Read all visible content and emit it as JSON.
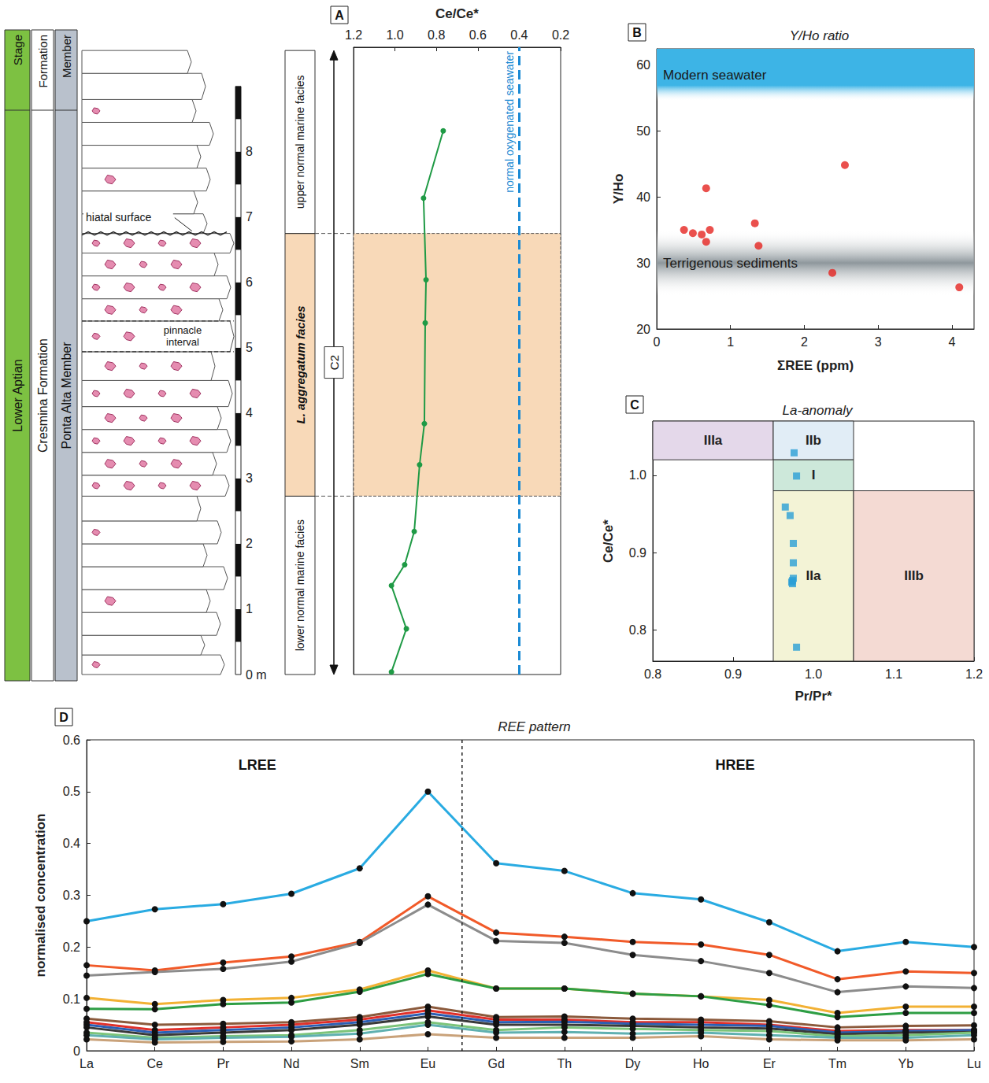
{
  "chart_data": [
    {
      "type": "line",
      "panel": "A",
      "x_label": "Ce/Ce*",
      "x": [
        1.017,
        0.945,
        1.017,
        0.953,
        0.907,
        0.881,
        0.858,
        0.854,
        0.85,
        0.862,
        0.767
      ],
      "values": [
        0.04,
        0.7,
        1.36,
        1.68,
        2.19,
        3.21,
        3.84,
        5.38,
        6.04,
        7.29,
        8.32
      ],
      "xlim": [
        1.2,
        0.2
      ],
      "xticks": [
        1.2,
        {
          "value": 1,
          "label": "1.0"
        },
        0.8,
        0.6,
        0.4,
        0.2
      ],
      "ylim": [
        0,
        9.6
      ],
      "yticks": [
        {
          "value": 0,
          "label": "0 m"
        },
        1,
        2,
        3,
        4,
        5,
        6,
        7,
        8
      ],
      "color": "#1f9a45",
      "marker": "circle",
      "grid": false,
      "reference_line": {
        "value": 0.4,
        "label": "normal oxygenated seawater",
        "color": "#1a8ad4"
      }
    },
    {
      "type": "scatter",
      "panel": "B",
      "title": "Y/Ho ratio",
      "x_label": "ΣREE (ppm)",
      "y_label": "Y/Ho",
      "x": [
        0.37,
        0.49,
        0.61,
        0.67,
        0.67,
        0.72,
        1.33,
        1.38,
        2.38,
        2.55,
        4.1
      ],
      "values": [
        35.0,
        34.5,
        34.3,
        41.3,
        33.2,
        35.0,
        36.0,
        32.6,
        28.5,
        44.8,
        26.3
      ],
      "xlim": [
        0,
        4.3
      ],
      "xticks": [
        0,
        1,
        2,
        3,
        4
      ],
      "ylim": [
        20,
        62.4
      ],
      "yticks": [
        20,
        30,
        40,
        50,
        60
      ],
      "color": "#e52421",
      "marker": "circle",
      "grid": false,
      "bands": [
        {
          "label": "Modern seawater",
          "y_range": [
            54.5,
            62.4
          ],
          "color": "#3db4e6"
        },
        {
          "label": "Terrigenous sediments",
          "y_range": [
            25,
            35
          ],
          "color": "#8e979c"
        }
      ]
    },
    {
      "type": "scatter",
      "panel": "C",
      "title": "La-anomaly",
      "x_label": "Pr/Pr*",
      "y_label": "Ce/Ce*",
      "x": [
        0.976,
        0.979,
        0.965,
        0.971,
        0.975,
        0.975,
        0.975,
        0.974,
        0.973,
        0.974,
        0.979
      ],
      "values": [
        1.029,
        0.999,
        0.959,
        0.948,
        0.912,
        0.887,
        0.867,
        0.864,
        0.862,
        0.86,
        0.778
      ],
      "xlim": [
        0.8,
        1.2
      ],
      "xticks": [
        0.8,
        0.9,
        {
          "value": 1,
          "label": "1.0"
        },
        1.1,
        1.2
      ],
      "ylim": [
        0.76,
        1.07
      ],
      "yticks": [
        0.8,
        0.9,
        {
          "value": 1,
          "label": "1.0"
        }
      ],
      "color": "#2a9fd6",
      "marker": "square",
      "grid": false,
      "regions": [
        {
          "label": "IIIa",
          "x_range": [
            0.8,
            0.95
          ],
          "y_range": [
            1.02,
            1.07
          ],
          "color": "#e4d8ea"
        },
        {
          "label": "IIb",
          "x_range": [
            0.95,
            1.05
          ],
          "y_range": [
            1.02,
            1.07
          ],
          "color": "#e1edf6"
        },
        {
          "label": "I",
          "x_range": [
            0.95,
            1.05
          ],
          "y_range": [
            0.98,
            1.02
          ],
          "color": "#cde8da"
        },
        {
          "label": "IIa",
          "x_range": [
            0.95,
            1.05
          ],
          "y_range": [
            0.76,
            0.98
          ],
          "color": "#f3f3d6"
        },
        {
          "label": "IIIb",
          "x_range": [
            1.05,
            1.2
          ],
          "y_range": [
            0.76,
            0.98
          ],
          "color": "#f4dad3"
        }
      ]
    },
    {
      "type": "line",
      "panel": "D",
      "title": "REE pattern",
      "y_label": "normalised concentration",
      "categories": [
        "La",
        "Ce",
        "Pr",
        "Nd",
        "Sm",
        "Eu",
        "Gd",
        "Th",
        "Dy",
        "Ho",
        "Er",
        "Tm",
        "Yb",
        "Lu"
      ],
      "ylim": [
        0,
        0.6
      ],
      "yticks": [
        0,
        0.1,
        0.2,
        0.3,
        0.4,
        0.5,
        0.6
      ],
      "marker": "circle",
      "grid": false,
      "group_labels": [
        {
          "label": "LREE",
          "from": "La",
          "to": "Eu"
        },
        {
          "label": "HREE",
          "from": "Gd",
          "to": "Lu"
        }
      ],
      "divider_between": [
        "Eu",
        "Gd"
      ],
      "series": [
        {
          "color": "#29abe2",
          "values": [
            0.25,
            0.273,
            0.283,
            0.303,
            0.352,
            0.5,
            0.362,
            0.347,
            0.304,
            0.292,
            0.248,
            0.192,
            0.21,
            0.2
          ]
        },
        {
          "color": "#f15a29",
          "values": [
            0.165,
            0.155,
            0.17,
            0.182,
            0.21,
            0.298,
            0.228,
            0.22,
            0.21,
            0.205,
            0.185,
            0.138,
            0.153,
            0.15
          ]
        },
        {
          "color": "#8c8c8c",
          "values": [
            0.145,
            0.152,
            0.158,
            0.172,
            0.208,
            0.282,
            0.212,
            0.208,
            0.185,
            0.173,
            0.15,
            0.113,
            0.124,
            0.121
          ]
        },
        {
          "color": "#f2b134",
          "values": [
            0.102,
            0.09,
            0.098,
            0.102,
            0.118,
            0.155,
            0.12,
            0.12,
            0.11,
            0.105,
            0.098,
            0.073,
            0.085,
            0.085
          ]
        },
        {
          "color": "#2e9e44",
          "values": [
            0.081,
            0.08,
            0.09,
            0.093,
            0.114,
            0.148,
            0.12,
            0.12,
            0.11,
            0.105,
            0.088,
            0.065,
            0.073,
            0.073
          ]
        },
        {
          "color": "#8b5a3c",
          "values": [
            0.062,
            0.05,
            0.052,
            0.055,
            0.065,
            0.085,
            0.065,
            0.066,
            0.062,
            0.06,
            0.057,
            0.045,
            0.048,
            0.049
          ]
        },
        {
          "color": "#e0302a",
          "values": [
            0.055,
            0.04,
            0.045,
            0.05,
            0.06,
            0.078,
            0.06,
            0.06,
            0.055,
            0.055,
            0.05,
            0.038,
            0.04,
            0.04
          ]
        },
        {
          "color": "#2b5fb4",
          "values": [
            0.05,
            0.035,
            0.04,
            0.045,
            0.055,
            0.072,
            0.055,
            0.056,
            0.052,
            0.05,
            0.048,
            0.035,
            0.038,
            0.04
          ]
        },
        {
          "color": "#3a3a3a",
          "values": [
            0.045,
            0.03,
            0.035,
            0.04,
            0.05,
            0.066,
            0.05,
            0.05,
            0.048,
            0.045,
            0.043,
            0.032,
            0.035,
            0.036
          ]
        },
        {
          "color": "#7cc47a",
          "values": [
            0.035,
            0.025,
            0.028,
            0.03,
            0.04,
            0.055,
            0.04,
            0.045,
            0.042,
            0.04,
            0.038,
            0.028,
            0.03,
            0.035
          ]
        },
        {
          "color": "#5fb0b0",
          "values": [
            0.03,
            0.022,
            0.025,
            0.027,
            0.033,
            0.05,
            0.035,
            0.036,
            0.033,
            0.035,
            0.03,
            0.025,
            0.025,
            0.03
          ]
        },
        {
          "color": "#c9a27a",
          "values": [
            0.022,
            0.016,
            0.017,
            0.018,
            0.022,
            0.032,
            0.025,
            0.025,
            0.025,
            0.028,
            0.022,
            0.02,
            0.02,
            0.022
          ]
        }
      ]
    }
  ],
  "stratigraphic_column": {
    "columns": [
      {
        "header": "Stage",
        "name": "Lower Aptian",
        "color": "#7dc142"
      },
      {
        "header": "Formation",
        "name": "Cresmina Formation",
        "color": "#ffffff"
      },
      {
        "header": "Member",
        "name": "Ponta Alta Member",
        "color": "#b9c1cc"
      }
    ],
    "hiatal_surface": {
      "label": "hiatal surface",
      "depth": 6.75
    },
    "pinnacle_interval": {
      "label": "pinnacle interval",
      "depth_range": [
        4.94,
        5.41
      ]
    },
    "facies": [
      {
        "label": "lower normal marine facies",
        "depth_range": [
          0,
          2.73
        ]
      },
      {
        "label": "L. aggregatum facies",
        "depth_range": [
          2.73,
          6.75
        ],
        "color": "#f8d9b8"
      },
      {
        "label": "upper normal marine facies",
        "depth_range": [
          6.75,
          9.55
        ]
      }
    ],
    "cycle": {
      "label": "C2",
      "depth_range": [
        0,
        9.55
      ]
    }
  }
}
